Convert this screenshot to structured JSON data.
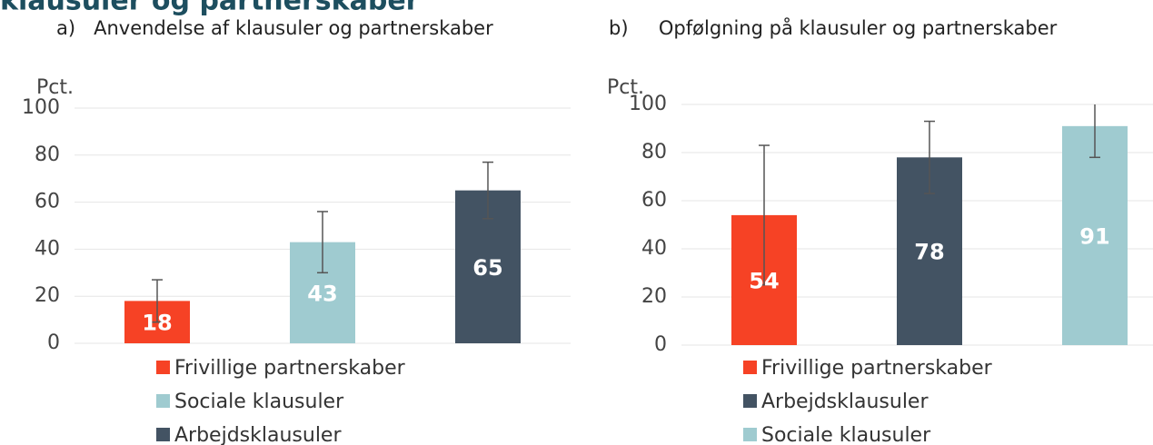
{
  "title": "klausuler og partnerskaber",
  "chart_data": [
    {
      "type": "bar",
      "subtitle": "a)   Anvendelse af klausuler og partnerskaber",
      "y_label": "Pct.",
      "ylim": [
        0,
        100
      ],
      "yticks": [
        0,
        20,
        40,
        60,
        80,
        100
      ],
      "grid": true,
      "series": [
        {
          "name": "Frivillige partnerskaber",
          "color": "#f64225",
          "values": [
            18
          ],
          "errors": [
            9
          ]
        },
        {
          "name": "Sociale klausuler",
          "color": "#9fcbd0",
          "values": [
            43
          ],
          "errors": [
            13
          ]
        },
        {
          "name": "Arbejdsklausuler",
          "color": "#435363",
          "values": [
            65
          ],
          "errors": [
            12
          ]
        }
      ]
    },
    {
      "type": "bar",
      "subtitle": "b)     Opfølgning på klausuler og partnerskaber",
      "y_label": "Pct.",
      "ylim": [
        0,
        100
      ],
      "yticks": [
        0,
        20,
        40,
        60,
        80,
        100
      ],
      "grid": true,
      "series": [
        {
          "name": "Frivillige partnerskaber",
          "color": "#f64225",
          "values": [
            54
          ],
          "errors": [
            29
          ]
        },
        {
          "name": "Arbejdsklausuler",
          "color": "#435363",
          "values": [
            78
          ],
          "errors": [
            15
          ]
        },
        {
          "name": "Sociale klausuler",
          "color": "#9fcbd0",
          "values": [
            91
          ],
          "errors": [
            13
          ]
        }
      ]
    }
  ]
}
